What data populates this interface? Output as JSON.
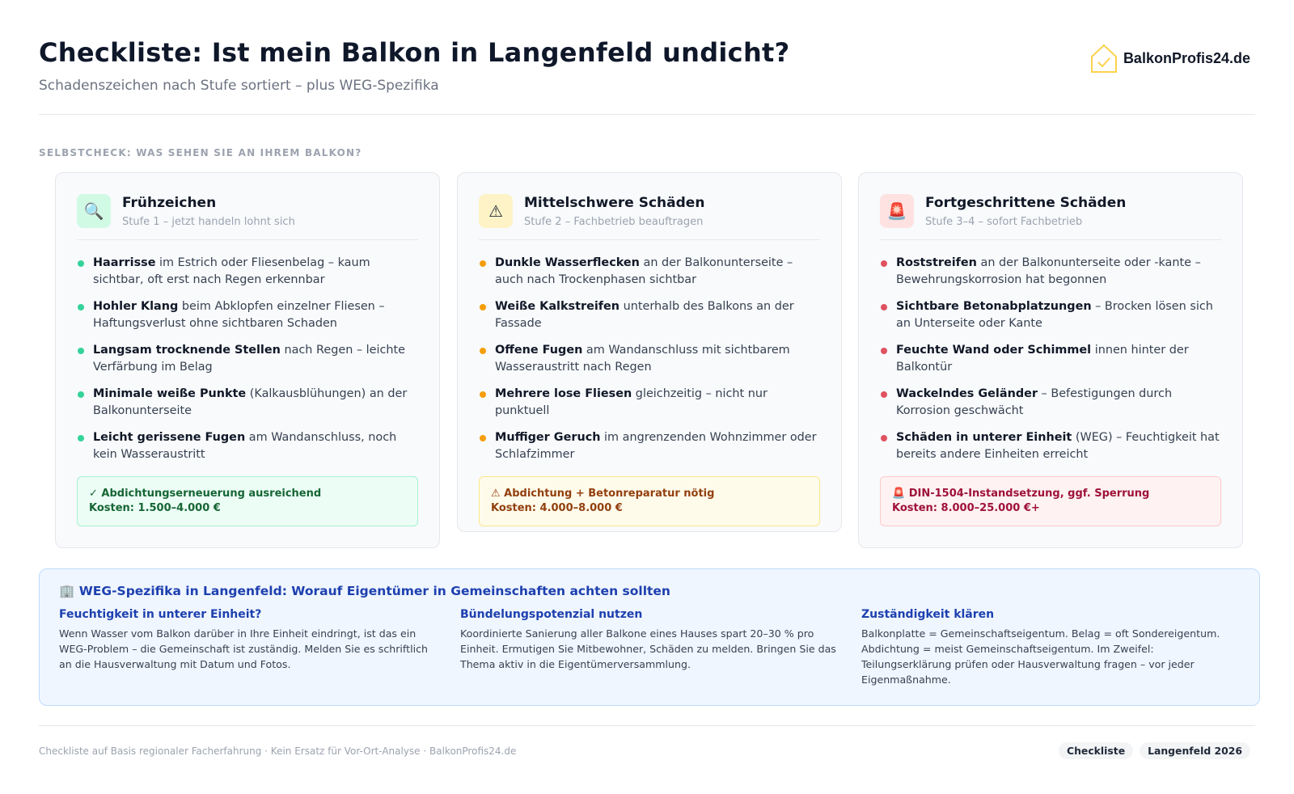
{
  "header": {
    "title": "Checkliste: Ist mein Balkon in Langenfeld undicht?",
    "subtitle": "Schadenszeichen nach Stufe sortiert – plus WEG-Spezifika",
    "logo_text": "BalkonProfis24.de"
  },
  "section_label": "SELBSTCHECK: WAS SEHEN SIE AN IHREM BALKON?",
  "cards": [
    {
      "icon": "magnifier-icon",
      "icon_glyph": "🔍",
      "title": "Frühzeichen",
      "subtitle": "Stufe 1 – jetzt handeln lohnt sich",
      "accent": "#34d399",
      "icon_bg": "#d1fae5",
      "items": [
        {
          "bold": "Haarrisse",
          "text": " im Estrich oder Fliesenbelag – kaum sichtbar, oft erst nach Regen erkennbar"
        },
        {
          "bold": "Hohler Klang",
          "text": " beim Abklopfen einzelner Fliesen – Haftungsverlust ohne sichtbaren Schaden"
        },
        {
          "bold": "Langsam trocknende Stellen",
          "text": " nach Regen – leichte Verfärbung im Belag"
        },
        {
          "bold": "Minimale weiße Punkte",
          "text": " (Kalkausblühungen) an der Balkonunterseite"
        },
        {
          "bold": "Leicht gerissene Fugen",
          "text": " am Wandanschluss, noch kein Wasseraustritt"
        }
      ],
      "result_line1": "✓ Abdichtungserneuerung ausreichend",
      "result_line2": "Kosten: 1.500–4.000 €",
      "result_bg": "#ecfdf5",
      "result_border": "#a7f3d0",
      "result_color": "#166534"
    },
    {
      "icon": "warning-icon",
      "icon_glyph": "⚠",
      "title": "Mittelschwere Schäden",
      "subtitle": "Stufe 2 – Fachbetrieb beauftragen",
      "accent": "#f59e0b",
      "icon_bg": "#fef3c7",
      "items": [
        {
          "bold": "Dunkle Wasserflecken",
          "text": " an der Balkonunterseite – auch nach Trockenphasen sichtbar"
        },
        {
          "bold": "Weiße Kalkstreifen",
          "text": " unterhalb des Balkons an der Fassade"
        },
        {
          "bold": "Offene Fugen",
          "text": " am Wandanschluss mit sichtbarem Wasseraustritt nach Regen"
        },
        {
          "bold": "Mehrere lose Fliesen",
          "text": " gleichzeitig – nicht nur punktuell"
        },
        {
          "bold": "Muffiger Geruch",
          "text": " im angrenzenden Wohnzimmer oder Schlafzimmer"
        }
      ],
      "result_line1": "⚠ Abdichtung + Betonreparatur nötig",
      "result_line2": "Kosten: 4.000–8.000 €",
      "result_bg": "#fffbeb",
      "result_border": "#fde68a",
      "result_color": "#92400e"
    },
    {
      "icon": "alarm-icon",
      "icon_glyph": "🚨",
      "title": "Fortgeschrittene Schäden",
      "subtitle": "Stufe 3–4 – sofort Fachbetrieb",
      "accent": "#e05260",
      "icon_bg": "#fee2e2",
      "items": [
        {
          "bold": "Roststreifen",
          "text": " an der Balkonunterseite oder -kante – Bewehrungskorrosion hat begonnen"
        },
        {
          "bold": "Sichtbare Betonabplatzungen",
          "text": " – Brocken lösen sich an Unterseite oder Kante"
        },
        {
          "bold": "Feuchte Wand oder Schimmel",
          "text": " innen hinter der Balkontür"
        },
        {
          "bold": "Wackelndes Geländer",
          "text": " – Befestigungen durch Korrosion geschwächt"
        },
        {
          "bold": "Schäden in unterer Einheit",
          "text": " (WEG) – Feuchtigkeit hat bereits andere Einheiten erreicht"
        }
      ],
      "result_line1": "🚨 DIN-1504-Instandsetzung, ggf. Sperrung",
      "result_line2": "Kosten: 8.000–25.000 €+",
      "result_bg": "#fef2f2",
      "result_border": "#fecaca",
      "result_color": "#9f1239"
    }
  ],
  "weg": {
    "title": "🏢 WEG-Spezifika in Langenfeld: Worauf Eigentümer in Gemeinschaften achten sollten",
    "columns": [
      {
        "title": "Feuchtigkeit in unterer Einheit?",
        "text": "Wenn Wasser vom Balkon darüber in Ihre Einheit eindringt, ist das ein WEG-Problem – die Gemeinschaft ist zuständig. Melden Sie es schriftlich an die Hausverwaltung mit Datum und Fotos."
      },
      {
        "title": "Bündelungspotenzial nutzen",
        "text": "Koordinierte Sanierung aller Balkone eines Hauses spart 20–30 % pro Einheit. Ermutigen Sie Mitbewohner, Schäden zu melden. Bringen Sie das Thema aktiv in die Eigentümerversammlung."
      },
      {
        "title": "Zuständigkeit klären",
        "text": "Balkonplatte = Gemeinschaftseigentum. Belag = oft Sondereigentum. Abdichtung = meist Gemeinschaftseigentum. Im Zweifel: Teilungserklärung prüfen oder Hausverwaltung fragen – vor jeder Eigenmaßnahme."
      }
    ]
  },
  "footer": {
    "text": "Checkliste auf Basis regionaler Facherfahrung · Kein Ersatz für Vor-Ort-Analyse · BalkonProfis24.de",
    "badges": [
      "Checkliste",
      "Langenfeld 2026"
    ]
  }
}
